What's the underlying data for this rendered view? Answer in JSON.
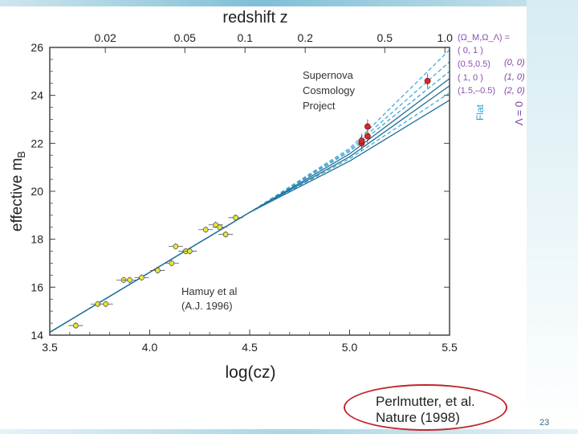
{
  "slide": {
    "page_number": "23",
    "citation_line1": "Perlmutter, et al.",
    "citation_line2": "Nature (1998)"
  },
  "chart_data": {
    "type": "scatter",
    "title": "",
    "xlabel": "log(cz)",
    "ylabel": "effective m",
    "ylabel_subscript": "B",
    "top_axis_label": "redshift  z",
    "xlim": [
      3.5,
      5.5
    ],
    "ylim": [
      14,
      26
    ],
    "xticks": [
      "3.5",
      "4.0",
      "4.5",
      "5.0",
      "5.5"
    ],
    "yticks": [
      "14",
      "16",
      "18",
      "20",
      "22",
      "24",
      "26"
    ],
    "top_ticks": [
      "0.02",
      "0.05",
      "0.1",
      "0.2",
      "0.5",
      "1.0"
    ],
    "top_tick_values": [
      0.02,
      0.05,
      0.1,
      0.2,
      0.5,
      1.0
    ],
    "annotations": {
      "project_lines": [
        "Supernova",
        "Cosmology",
        "Project"
      ],
      "hamuy_lines": [
        "Hamuy et al",
        "(A.J. 1996)"
      ]
    },
    "legend": {
      "header": "(Ω_M,Ω_Λ) =",
      "flat_entries": [
        "( 0,   1 )",
        "(0.5,0.5)",
        "( 1,   0 )",
        "(1.5,–0.5)"
      ],
      "lambda_zero_entries": [
        "(0, 0)",
        "(1, 0)",
        "(2, 0)"
      ],
      "flat_label": "Flat",
      "lambda_zero_label": "Λ = 0",
      "color_flat": "#8b4fb0",
      "color_lambda0": "#7b3fa0",
      "color_flat_label": "#2a9fd0"
    },
    "colors": {
      "nearby_points": "#e8e83a",
      "nearby_edge": "#555555",
      "high_z_points": "#d62828",
      "error_bars": "#555555",
      "model_solid": "#1f6f95",
      "model_dashed": "#3aa3d4",
      "frame": "#444444"
    },
    "series": [
      {
        "marker": "yellow",
        "x": [
          3.63,
          3.74,
          3.78,
          3.87,
          3.9,
          3.96,
          4.04,
          4.11,
          4.13,
          4.18,
          4.2,
          4.28,
          4.33,
          4.35,
          4.38,
          4.43
        ],
        "y": [
          14.4,
          15.3,
          15.3,
          16.3,
          16.3,
          16.4,
          16.7,
          17.0,
          17.7,
          17.5,
          17.5,
          18.4,
          18.6,
          18.5,
          18.2,
          18.9
        ]
      },
      {
        "marker": "red",
        "x": [
          5.06,
          5.09,
          5.09,
          5.06,
          5.39
        ],
        "y": [
          22.0,
          22.7,
          22.3,
          22.1,
          24.6
        ]
      }
    ],
    "model_curves": [
      {
        "style": "dashed",
        "x": [
          3.5,
          4.5,
          5.0,
          5.5
        ],
        "y": [
          14.12,
          19.12,
          21.79,
          25.9
        ]
      },
      {
        "style": "dashed",
        "x": [
          3.5,
          4.5,
          5.0,
          5.5
        ],
        "y": [
          14.12,
          19.12,
          21.72,
          25.4
        ]
      },
      {
        "style": "dashed",
        "x": [
          3.5,
          4.5,
          5.0,
          5.5
        ],
        "y": [
          14.12,
          19.12,
          21.66,
          25.0
        ]
      },
      {
        "style": "solid",
        "x": [
          3.5,
          4.5,
          5.0,
          5.5
        ],
        "y": [
          14.12,
          19.12,
          21.56,
          24.7
        ]
      },
      {
        "style": "solid",
        "x": [
          3.5,
          4.5,
          5.0,
          5.5
        ],
        "y": [
          14.12,
          19.12,
          21.44,
          24.4
        ]
      },
      {
        "style": "dashed",
        "x": [
          3.5,
          4.5,
          5.0,
          5.5
        ],
        "y": [
          14.12,
          19.12,
          21.36,
          24.1
        ]
      },
      {
        "style": "solid",
        "x": [
          3.5,
          4.5,
          5.0,
          5.5
        ],
        "y": [
          14.12,
          19.12,
          21.26,
          23.8
        ]
      }
    ]
  }
}
